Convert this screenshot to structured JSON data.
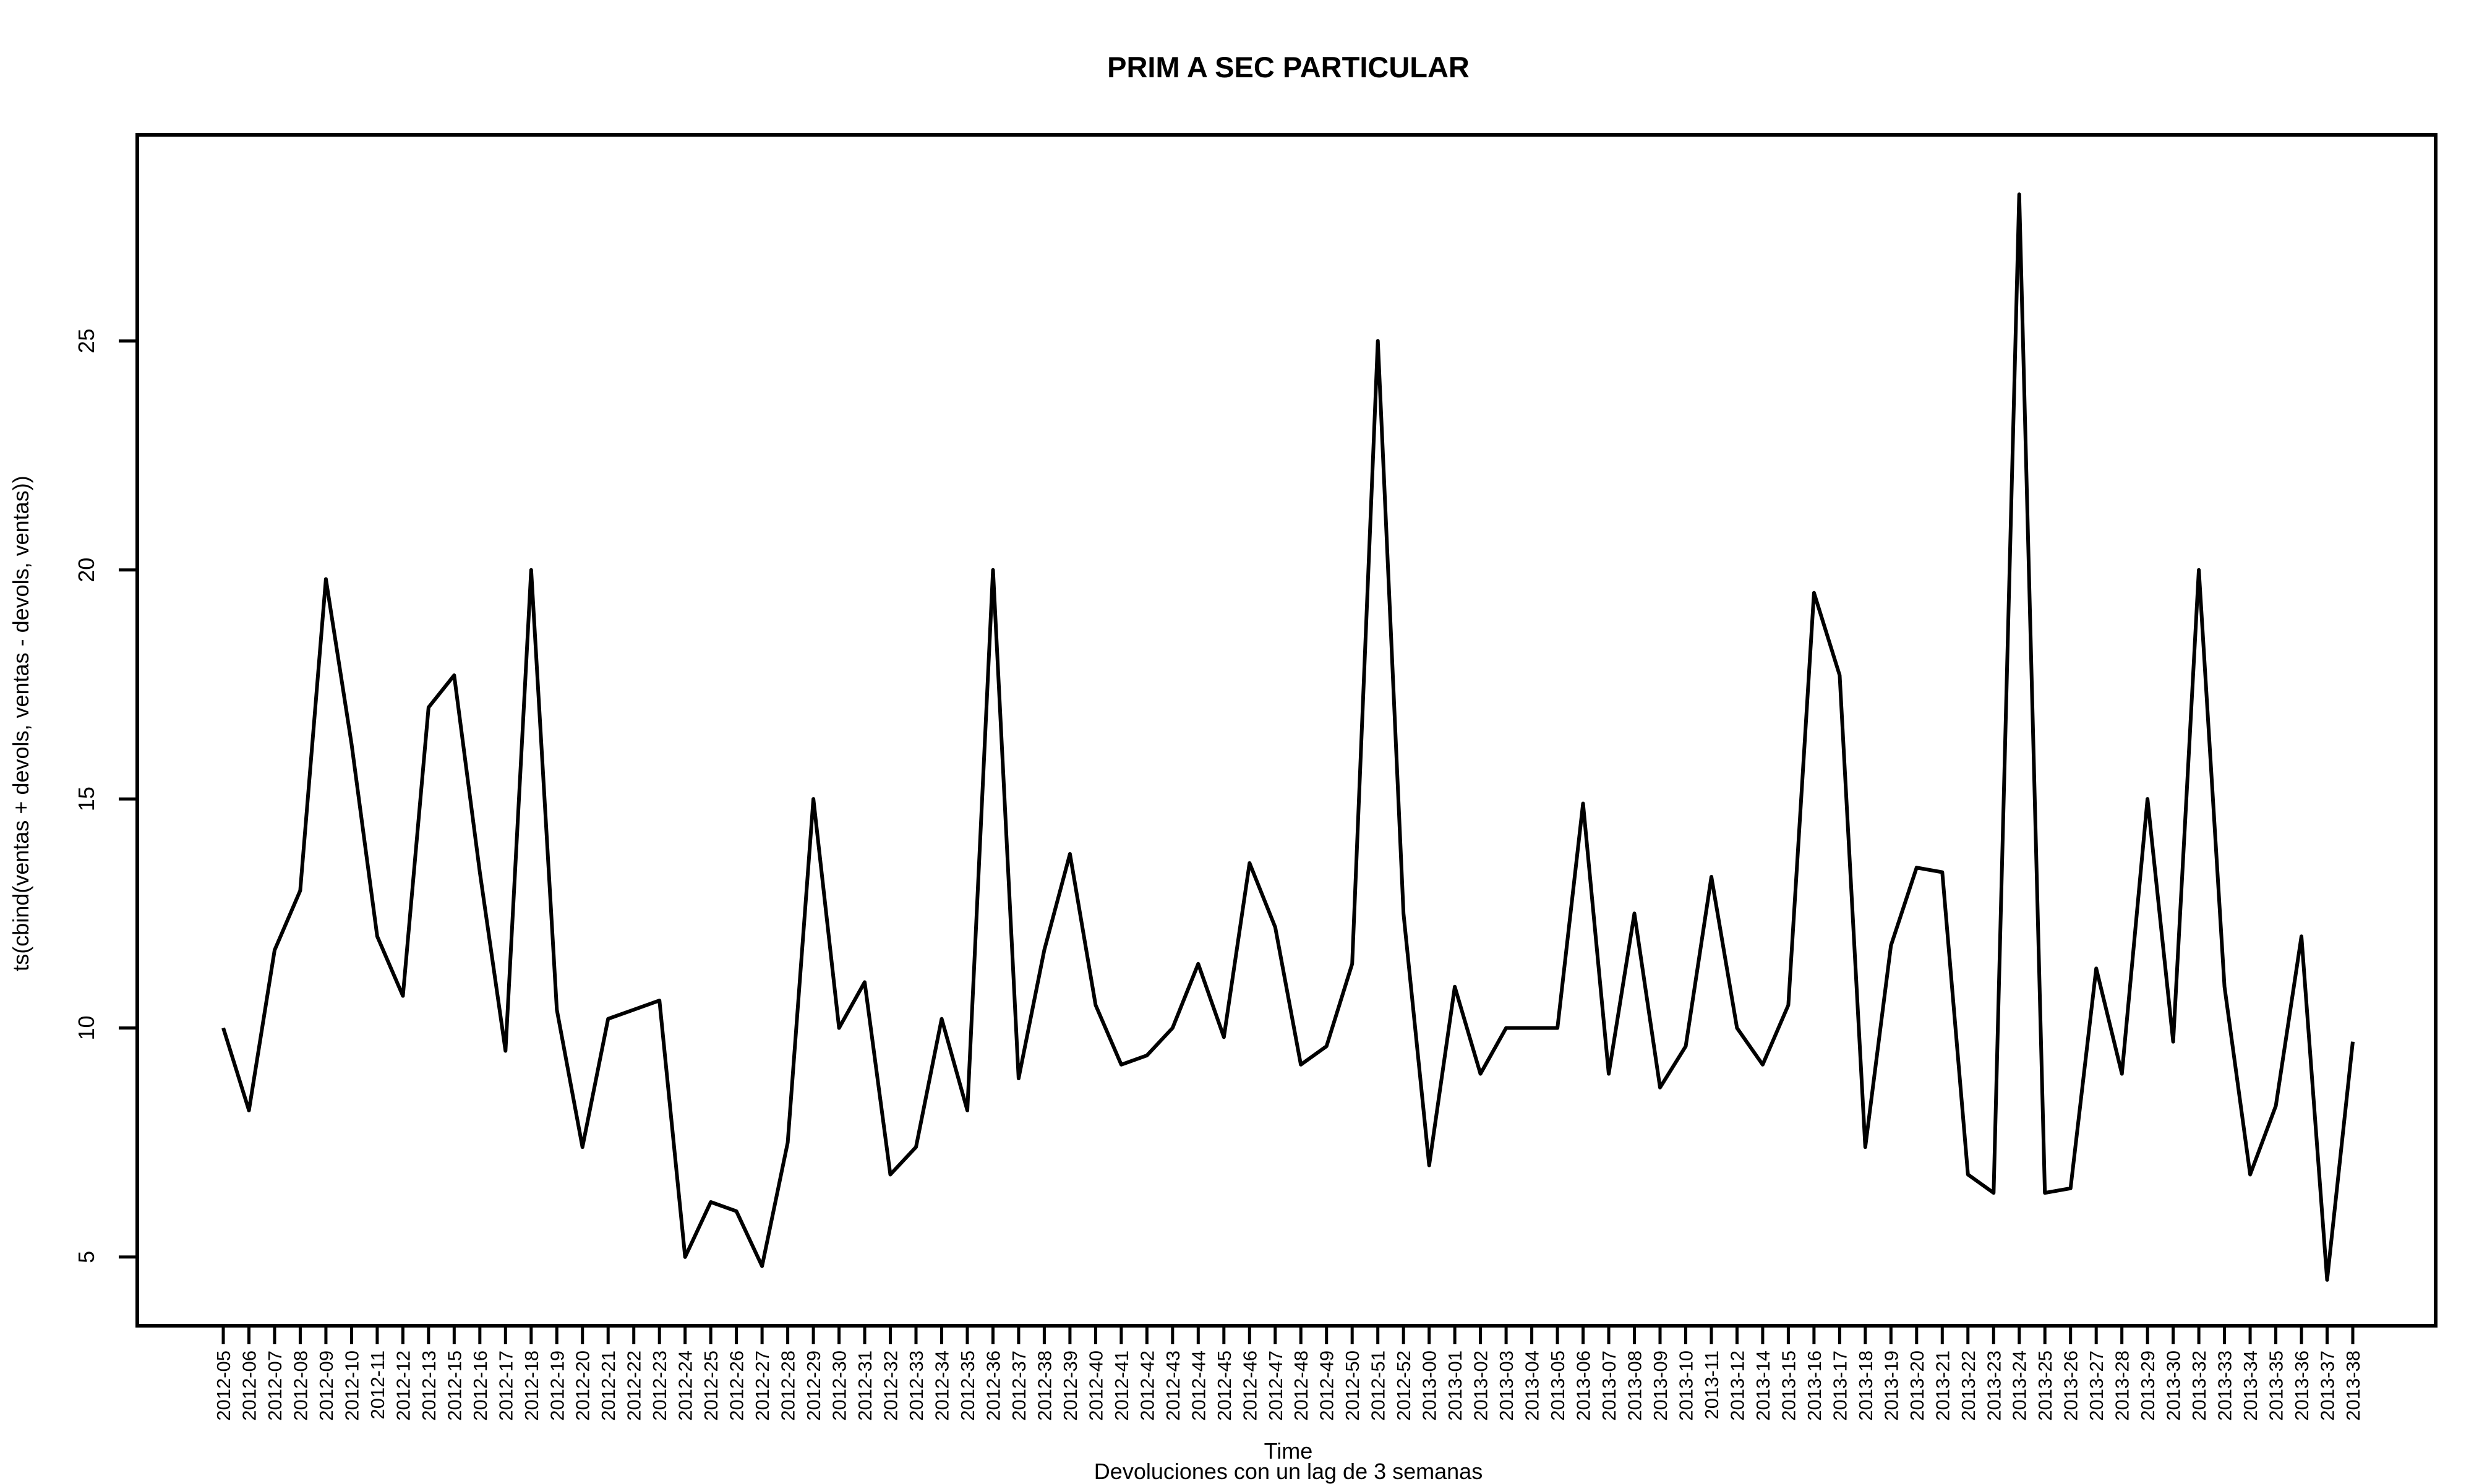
{
  "chart_data": {
    "type": "line",
    "title": "PRIM A SEC PARTICULAR",
    "xlabel": "Time",
    "ylabel": "ts(cbind(ventas + devols, ventas - devols, ventas))",
    "subtitle": "Devoluciones con un lag de 3 semanas",
    "ylim": [
      3.5,
      29.5
    ],
    "yticks": [
      5,
      10,
      15,
      20,
      25
    ],
    "grid": false,
    "categories": [
      "2012-05",
      "2012-06",
      "2012-07",
      "2012-08",
      "2012-09",
      "2012-10",
      "2012-11",
      "2012-12",
      "2012-13",
      "2012-15",
      "2012-16",
      "2012-17",
      "2012-18",
      "2012-19",
      "2012-20",
      "2012-21",
      "2012-22",
      "2012-23",
      "2012-24",
      "2012-25",
      "2012-26",
      "2012-27",
      "2012-28",
      "2012-29",
      "2012-30",
      "2012-31",
      "2012-32",
      "2012-33",
      "2012-34",
      "2012-35",
      "2012-36",
      "2012-37",
      "2012-38",
      "2012-39",
      "2012-40",
      "2012-41",
      "2012-42",
      "2012-43",
      "2012-44",
      "2012-45",
      "2012-46",
      "2012-47",
      "2012-48",
      "2012-49",
      "2012-50",
      "2012-51",
      "2012-52",
      "2013-00",
      "2013-01",
      "2013-02",
      "2013-03",
      "2013-04",
      "2013-05",
      "2013-06",
      "2013-07",
      "2013-08",
      "2013-09",
      "2013-10",
      "2013-11",
      "2013-12",
      "2013-14",
      "2013-15",
      "2013-16",
      "2013-17",
      "2013-18",
      "2013-19",
      "2013-20",
      "2013-21",
      "2013-22",
      "2013-23",
      "2013-24",
      "2013-25",
      "2013-26",
      "2013-27",
      "2013-28",
      "2013-29",
      "2013-30",
      "2013-32",
      "2013-33",
      "2013-34",
      "2013-35",
      "2013-36",
      "2013-37",
      "2013-38"
    ],
    "series": [
      {
        "values": [
          10.0,
          8.2,
          11.7,
          13.0,
          19.8,
          16.2,
          12.0,
          10.7,
          17.0,
          17.7,
          13.4,
          9.5,
          20.0,
          10.4,
          7.4,
          10.2,
          10.4,
          10.6,
          5.0,
          6.2,
          6.0,
          4.8,
          7.5,
          15.0,
          10.0,
          11.0,
          6.8,
          7.4,
          10.2,
          8.2,
          20.0,
          8.9,
          11.7,
          13.8,
          10.5,
          9.2,
          9.4,
          10.0,
          11.4,
          9.8,
          13.6,
          12.2,
          9.2,
          9.6,
          11.4,
          25.0,
          12.5,
          7.0,
          10.9,
          9.0,
          10.0,
          10.0,
          10.0,
          14.9,
          9.0,
          12.5,
          8.7,
          9.6,
          13.3,
          10.0,
          9.2,
          10.5,
          19.5,
          17.7,
          7.4,
          11.8,
          13.5,
          13.4,
          6.8,
          6.4,
          28.2,
          6.4,
          6.5,
          11.3,
          9.0,
          15.0,
          9.7,
          20.0,
          10.9,
          6.8,
          8.3,
          12.0,
          4.5,
          9.7
        ]
      }
    ]
  }
}
